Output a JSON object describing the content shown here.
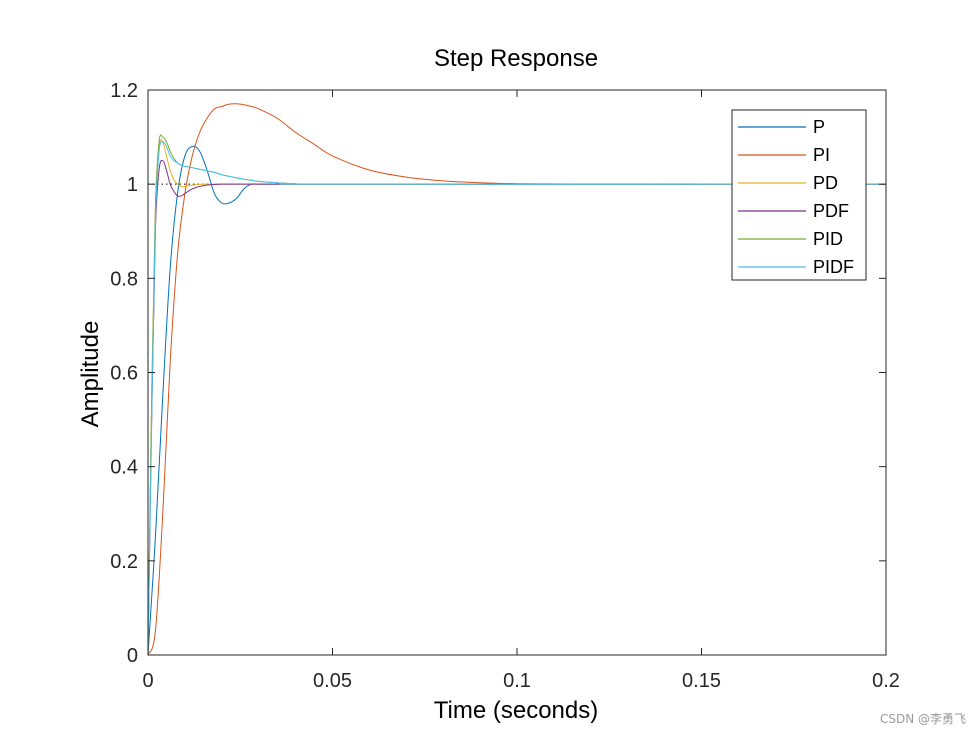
{
  "chart_data": {
    "type": "line",
    "title": "Step Response",
    "xlabel": "Time (seconds)",
    "ylabel": "Amplitude",
    "xlim": [
      0,
      0.2
    ],
    "ylim": [
      0,
      1.2
    ],
    "xticks": [
      0,
      0.05,
      0.1,
      0.15,
      0.2
    ],
    "xtick_labels": [
      "0",
      "0.05",
      "0.1",
      "0.15",
      "0.2"
    ],
    "yticks": [
      0,
      0.2,
      0.4,
      0.6,
      0.8,
      1.0,
      1.2
    ],
    "ytick_labels": [
      "0",
      "0.2",
      "0.4",
      "0.6",
      "0.8",
      "1",
      "1.2"
    ],
    "reference_line": {
      "y": 1.0,
      "style": "dotted"
    },
    "legend_position": "top-right",
    "series": [
      {
        "name": "P",
        "color": "#0072BD",
        "x": [
          0,
          0.002,
          0.004,
          0.006,
          0.008,
          0.01,
          0.012,
          0.014,
          0.016,
          0.018,
          0.02,
          0.022,
          0.024,
          0.026,
          0.028,
          0.03,
          0.034,
          0.04,
          0.05,
          0.1,
          0.2
        ],
        "y": [
          0,
          0.25,
          0.55,
          0.82,
          0.98,
          1.06,
          1.08,
          1.07,
          1.03,
          0.98,
          0.96,
          0.96,
          0.97,
          0.99,
          1.0,
          1.0,
          1.0,
          1.0,
          1.0,
          1.0,
          1.0
        ]
      },
      {
        "name": "PI",
        "color": "#D95319",
        "x": [
          0,
          0.002,
          0.004,
          0.006,
          0.008,
          0.01,
          0.012,
          0.014,
          0.016,
          0.018,
          0.02,
          0.022,
          0.025,
          0.028,
          0.03,
          0.035,
          0.04,
          0.045,
          0.05,
          0.06,
          0.07,
          0.08,
          0.09,
          0.1,
          0.12,
          0.15,
          0.2
        ],
        "y": [
          0,
          0.05,
          0.3,
          0.62,
          0.85,
          0.98,
          1.06,
          1.11,
          1.14,
          1.16,
          1.165,
          1.17,
          1.17,
          1.165,
          1.16,
          1.14,
          1.11,
          1.085,
          1.06,
          1.03,
          1.015,
          1.007,
          1.003,
          1.001,
          1.0,
          1.0,
          1.0
        ]
      },
      {
        "name": "PD",
        "color": "#EDB120",
        "x": [
          0,
          0.001,
          0.002,
          0.003,
          0.004,
          0.005,
          0.006,
          0.007,
          0.008,
          0.009,
          0.01,
          0.012,
          0.015,
          0.02,
          0.03,
          0.05,
          0.2
        ],
        "y": [
          0,
          0.55,
          0.95,
          1.08,
          1.09,
          1.06,
          1.03,
          1.01,
          1.0,
          0.995,
          0.995,
          0.998,
          1.0,
          1.0,
          1.0,
          1.0,
          1.0
        ]
      },
      {
        "name": "PDF",
        "color": "#7E2F8E",
        "x": [
          0,
          0.001,
          0.002,
          0.003,
          0.004,
          0.005,
          0.006,
          0.007,
          0.008,
          0.009,
          0.01,
          0.012,
          0.015,
          0.02,
          0.03,
          0.05,
          0.2
        ],
        "y": [
          0,
          0.5,
          0.9,
          1.03,
          1.05,
          1.03,
          1.0,
          0.985,
          0.975,
          0.975,
          0.98,
          0.99,
          0.997,
          1.0,
          1.0,
          1.0,
          1.0
        ]
      },
      {
        "name": "PID",
        "color": "#77AC30",
        "x": [
          0,
          0.001,
          0.002,
          0.003,
          0.004,
          0.005,
          0.006,
          0.007,
          0.008,
          0.009,
          0.01,
          0.012,
          0.015,
          0.018,
          0.02,
          0.025,
          0.03,
          0.035,
          0.04,
          0.05,
          0.2
        ],
        "y": [
          0,
          0.55,
          0.95,
          1.09,
          1.1,
          1.09,
          1.07,
          1.055,
          1.045,
          1.04,
          1.038,
          1.035,
          1.03,
          1.025,
          1.02,
          1.012,
          1.006,
          1.003,
          1.001,
          1.0,
          1.0
        ]
      },
      {
        "name": "PIDF",
        "color": "#4DBEEE",
        "x": [
          0,
          0.001,
          0.002,
          0.003,
          0.004,
          0.005,
          0.006,
          0.007,
          0.008,
          0.009,
          0.01,
          0.012,
          0.015,
          0.018,
          0.02,
          0.025,
          0.03,
          0.035,
          0.04,
          0.05,
          0.2
        ],
        "y": [
          0,
          0.5,
          0.92,
          1.07,
          1.09,
          1.08,
          1.06,
          1.05,
          1.045,
          1.04,
          1.038,
          1.035,
          1.03,
          1.025,
          1.02,
          1.012,
          1.006,
          1.003,
          1.001,
          1.0,
          1.0
        ]
      }
    ]
  },
  "watermark": "CSDN @李勇飞"
}
